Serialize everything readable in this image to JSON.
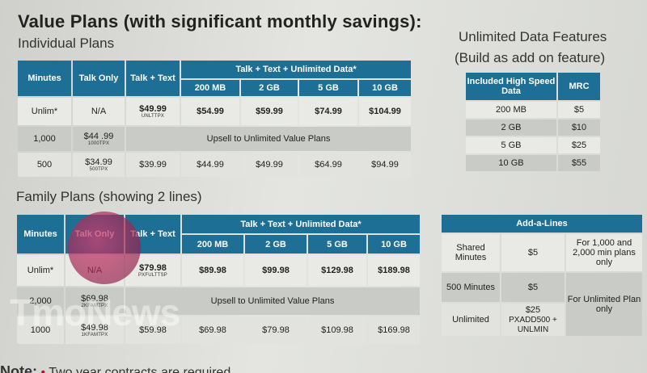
{
  "title": "Value Plans (with significant monthly savings):",
  "individual": {
    "subtitle": "Individual Plans",
    "h_minutes": "Minutes",
    "h_talk_only": "Talk Only",
    "h_talk_text": "Talk + Text",
    "h_data": "Talk + Text + Unlimited Data*",
    "h_data_cols": [
      "200 MB",
      "2 GB",
      "5 GB",
      "10 GB"
    ],
    "rows": [
      {
        "minutes": "Unlim*",
        "talk_only": "N/A",
        "talk_text": "$49.99",
        "talk_text_code": "UNLTTPX",
        "data": [
          "$54.99",
          "$59.99",
          "$74.99",
          "$104.99"
        ]
      },
      {
        "minutes": "1,000",
        "talk_only": "$44 .99",
        "talk_only_code": "1000TPX",
        "upsell": "Upsell to Unlimited Value Plans"
      },
      {
        "minutes": "500",
        "talk_only": "$34.99",
        "talk_only_code": "500TPX",
        "talk_text": "$39.99",
        "data": [
          "$44.99",
          "$49.99",
          "$64.99",
          "$94.99"
        ]
      }
    ]
  },
  "unlimited_data": {
    "title1": "Unlimited Data Features",
    "title2": "(Build as add on feature)",
    "h_speed": "Included High Speed Data",
    "h_mrc": "MRC",
    "rows": [
      [
        "200 MB",
        "$5"
      ],
      [
        "2 GB",
        "$10"
      ],
      [
        "5 GB",
        "$25"
      ],
      [
        "10 GB",
        "$55"
      ]
    ]
  },
  "family": {
    "subtitle": "Family Plans (showing 2 lines)",
    "h_minutes": "Minutes",
    "h_talk_only": "Talk Only",
    "h_talk_text": "Talk + Text",
    "h_data": "Talk + Text + Unlimited Data*",
    "h_data_cols": [
      "200 MB",
      "2 GB",
      "5 GB",
      "10 GB"
    ],
    "rows": [
      {
        "minutes": "Unlim*",
        "talk_only": "N/A",
        "talk_text": "$79.98",
        "talk_text_code": "PXFULTTSP",
        "data": [
          "$89.98",
          "$99.98",
          "$129.98",
          "$189.98"
        ]
      },
      {
        "minutes": "2,000",
        "talk_only": "$69.98",
        "talk_only_code": "2KFAMTPX",
        "upsell": "Upsell to Unlimited Value Plans"
      },
      {
        "minutes": "1000",
        "talk_only": "$49.98",
        "talk_only_code": "1KFAMTPX",
        "talk_text": "$59.98",
        "data": [
          "$69.98",
          "$79.98",
          "$109.98",
          "$169.98"
        ]
      }
    ]
  },
  "add_a_lines": {
    "title": "Add-a-Lines",
    "r1": {
      "label": "Shared Minutes",
      "price": "$5",
      "note": "For 1,000 and 2,000 min plans only"
    },
    "r2": {
      "label": "500 Minutes",
      "price": "$5",
      "note": "For Unlimited Plan only"
    },
    "r3": {
      "label": "Unlimited",
      "price": "$25",
      "code": "PXADD500 + UNLMIN"
    }
  },
  "note": {
    "label": "Note:",
    "bullet": "•",
    "text": "Two year contracts are required"
  },
  "watermark": "TmoNews"
}
